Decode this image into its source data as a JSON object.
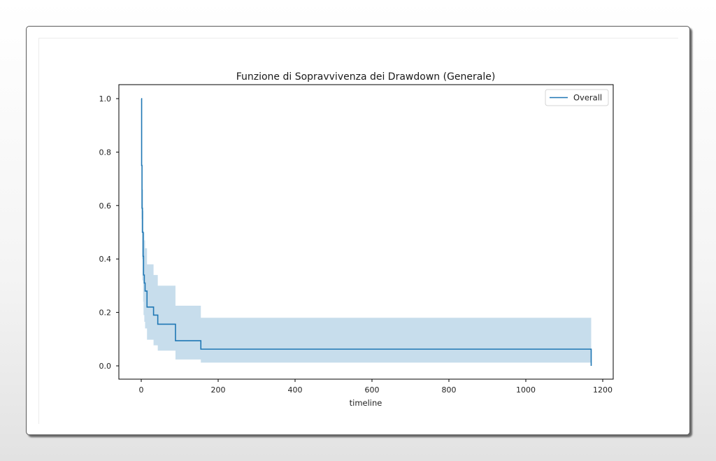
{
  "chart_data": {
    "type": "line",
    "subtype": "step (Kaplan-Meier survival function with confidence band)",
    "title": "Funzione di Sopravvivenza dei Drawdown (Generale)",
    "xlabel": "timeline",
    "ylabel": "",
    "xlim": [
      -55,
      1230
    ],
    "ylim": [
      -0.05,
      1.05
    ],
    "xticks": [
      0,
      200,
      400,
      600,
      800,
      1000,
      1200
    ],
    "xtick_labels": [
      "0",
      "200",
      "400",
      "600",
      "800",
      "1000",
      "1200"
    ],
    "yticks": [
      0.0,
      0.2,
      0.4,
      0.6,
      0.8,
      1.0
    ],
    "ytick_labels": [
      "0.0",
      "0.2",
      "0.4",
      "0.6",
      "0.8",
      "1.0"
    ],
    "grid": false,
    "legend_position": "upper right",
    "series": [
      {
        "name": "Overall",
        "color": "#1f77b4",
        "ci_color": "#1f77b4",
        "ci_alpha": 0.25,
        "x": [
          0,
          1,
          2,
          3,
          5,
          6,
          8,
          10,
          15,
          32,
          43,
          89,
          155,
          1170
        ],
        "y": [
          1.0,
          0.75,
          0.59,
          0.5,
          0.41,
          0.34,
          0.31,
          0.28,
          0.22,
          0.19,
          0.156,
          0.094,
          0.0625,
          0.0
        ],
        "ci_upper": [
          1.0,
          0.9,
          0.75,
          0.66,
          0.58,
          0.5,
          0.47,
          0.44,
          0.38,
          0.34,
          0.3,
          0.225,
          0.18,
          0.18
        ],
        "ci_lower": [
          1.0,
          0.55,
          0.4,
          0.32,
          0.24,
          0.19,
          0.165,
          0.14,
          0.098,
          0.077,
          0.057,
          0.024,
          0.012,
          0.012
        ]
      }
    ]
  },
  "legend": {
    "label": "Overall"
  }
}
